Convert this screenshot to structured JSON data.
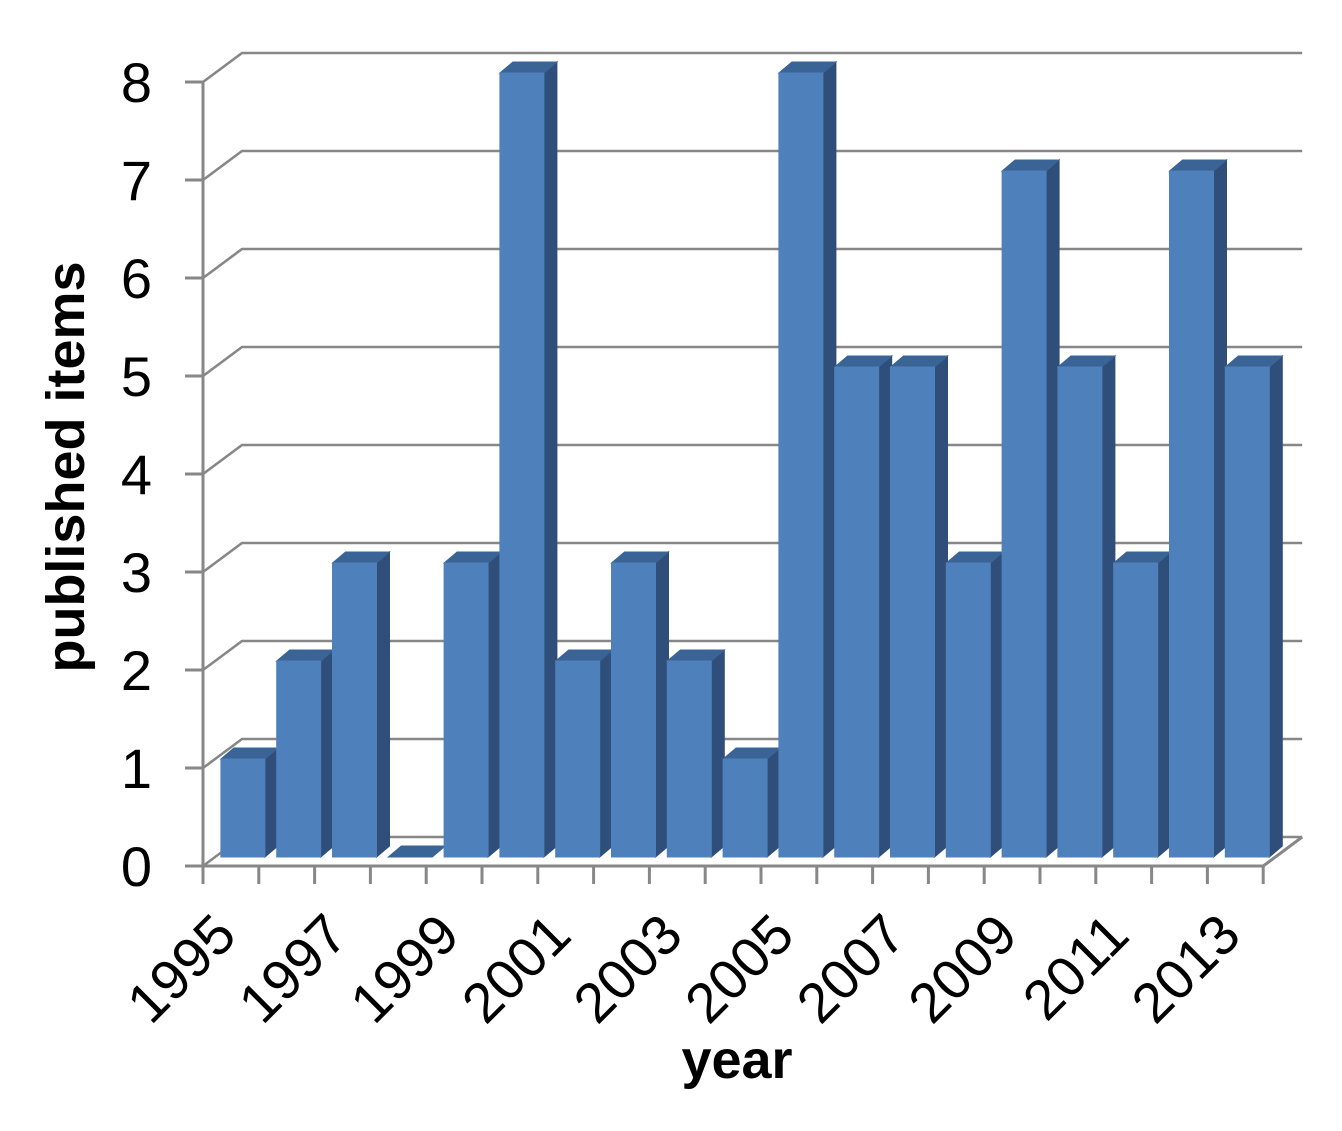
{
  "figure": {
    "background": "#ffffff"
  },
  "chart_data": {
    "type": "bar",
    "style": "3d-column",
    "title": "",
    "xlabel": "year",
    "ylabel": "published items",
    "categories": [
      "1995",
      "1996",
      "1997",
      "1998",
      "1999",
      "2000",
      "2001",
      "2002",
      "2003",
      "2004",
      "2005",
      "2006",
      "2007",
      "2008",
      "2009",
      "2010",
      "2011",
      "2012",
      "2013"
    ],
    "values": [
      1,
      2,
      3,
      0,
      3,
      8,
      2,
      3,
      2,
      1,
      8,
      5,
      5,
      3,
      7,
      5,
      3,
      7,
      5
    ],
    "x_tick_labels": [
      "1995",
      "1997",
      "1999",
      "2001",
      "2003",
      "2005",
      "2007",
      "2009",
      "2011",
      "2013"
    ],
    "y_ticks": [
      0,
      1,
      2,
      3,
      4,
      5,
      6,
      7,
      8
    ],
    "y_tick_labels": [
      "0",
      "1",
      "2",
      "3",
      "4",
      "5",
      "6",
      "7",
      "8"
    ],
    "ylim": [
      0,
      8
    ],
    "grid": true,
    "legend": "none",
    "colors": {
      "bar_front": "#4E80BC",
      "bar_top": "#3A6495",
      "bar_side": "#2F4E79",
      "gridline": "#878787",
      "axis": "#878787",
      "text": "#000000"
    }
  }
}
